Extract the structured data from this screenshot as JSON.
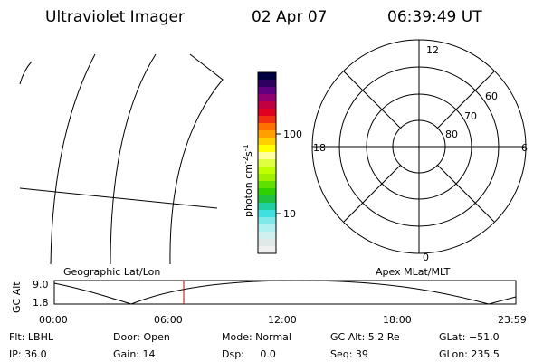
{
  "header": {
    "instrument": "Ultraviolet Imager",
    "date": "02 Apr 07",
    "time": "06:39:49 UT"
  },
  "colorbar": {
    "unit": [
      "photon cm",
      "-2",
      "s",
      "-1"
    ],
    "ticks": [
      "100",
      "10"
    ]
  },
  "polar": {
    "mlt_labels": {
      "top": "12",
      "left": "18",
      "right": "6",
      "bottom": "0"
    },
    "lat_labels": [
      "60",
      "70",
      "80"
    ]
  },
  "timeline": {
    "left_title": "Geographic Lat/Lon",
    "right_title": "Apex MLat/MLT",
    "y_label": "GC Alt",
    "y_max": "9.0",
    "y_min": "1.8",
    "time_labels": [
      "00:00",
      "06:00",
      "12:00",
      "18:00",
      "23:59"
    ]
  },
  "status": {
    "rows": [
      [
        "Flt: LBHL",
        "Door: Open",
        "Mode: Normal",
        "GC Alt: 5.2 Re",
        "GLat: −51.0"
      ],
      [
        "IP: 36.0",
        "Gain: 14",
        "Dsp:     0.0",
        "Seq: 39",
        "GLon: 235.5"
      ]
    ]
  }
}
